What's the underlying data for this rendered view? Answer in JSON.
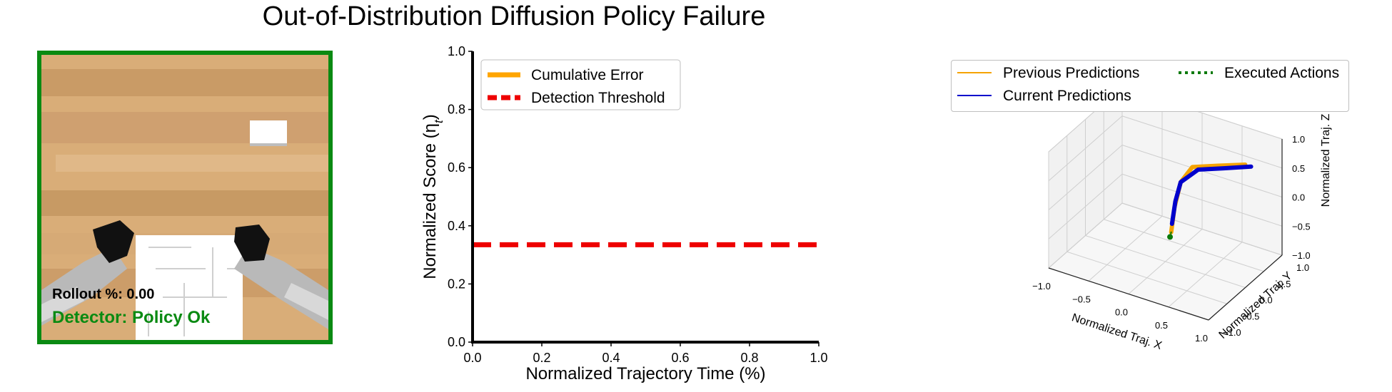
{
  "figure": {
    "title": "Out-of-Distribution Diffusion Policy Failure"
  },
  "sim_view": {
    "rollout_text": "Rollout %: 0.00",
    "detector_text": "Detector: Policy Ok",
    "border_color": "#0a8a12",
    "detector_color": "#0a8a12"
  },
  "chart_data": [
    {
      "type": "line",
      "xlabel": "Normalized Trajectory Time (%)",
      "ylabel": "Normalized Score (η",
      "ylabel_sub": "t",
      "ylabel_close": ")",
      "xlim": [
        0.0,
        1.0
      ],
      "ylim": [
        0.0,
        1.0
      ],
      "xticks": [
        "0.0",
        "0.2",
        "0.4",
        "0.6",
        "0.8",
        "1.0"
      ],
      "yticks": [
        "0.0",
        "0.2",
        "0.4",
        "0.6",
        "0.8",
        "1.0"
      ],
      "grid": false,
      "legend_position": "top-left",
      "series": [
        {
          "name": "Cumulative Error",
          "color": "#ffa500",
          "style": "solid",
          "x": [],
          "y": []
        },
        {
          "name": "Detection Threshold",
          "color": "#ee0000",
          "style": "dashed",
          "x": [
            0.0,
            1.0
          ],
          "y": [
            0.335,
            0.335
          ]
        }
      ]
    },
    {
      "type": "line3d",
      "xlabel": "Normalized Traj. X",
      "ylabel": "Normalized Traj. Y",
      "zlabel": "Normalized Traj. Z",
      "xlim": [
        -1.0,
        1.0
      ],
      "ylim": [
        -1.0,
        1.0
      ],
      "zlim": [
        -1.0,
        1.0
      ],
      "xticks": [
        "−1.0",
        "−0.5",
        "0.0",
        "0.5",
        "1.0"
      ],
      "yticks": [
        "−1.0",
        "−0.5",
        "0.0",
        "0.5",
        "1.0"
      ],
      "zticks": [
        "−1.0",
        "−0.5",
        "0.0",
        "0.5",
        "1.0"
      ],
      "grid": true,
      "legend_position": "top",
      "series": [
        {
          "name": "Previous Predictions",
          "color": "#f5a300",
          "style": "solid",
          "points": [
            [
              0.05,
              0.05,
              -0.5
            ],
            [
              0.06,
              0.12,
              -0.1
            ],
            [
              0.1,
              0.2,
              0.3
            ],
            [
              0.2,
              0.3,
              0.55
            ],
            [
              0.45,
              0.45,
              0.6
            ],
            [
              0.7,
              0.65,
              0.62
            ]
          ]
        },
        {
          "name": "Current Predictions",
          "color": "#0000cc",
          "style": "solid",
          "points": [
            [
              0.06,
              0.05,
              -0.35
            ],
            [
              0.07,
              0.12,
              0.0
            ],
            [
              0.1,
              0.2,
              0.3
            ],
            [
              0.25,
              0.35,
              0.5
            ],
            [
              0.5,
              0.5,
              0.55
            ],
            [
              0.75,
              0.7,
              0.58
            ]
          ]
        },
        {
          "name": "Executed Actions",
          "color": "#0a7a0a",
          "style": "dotted",
          "points": [
            [
              0.04,
              0.04,
              -0.58
            ],
            [
              0.05,
              0.05,
              -0.5
            ]
          ]
        }
      ]
    }
  ]
}
